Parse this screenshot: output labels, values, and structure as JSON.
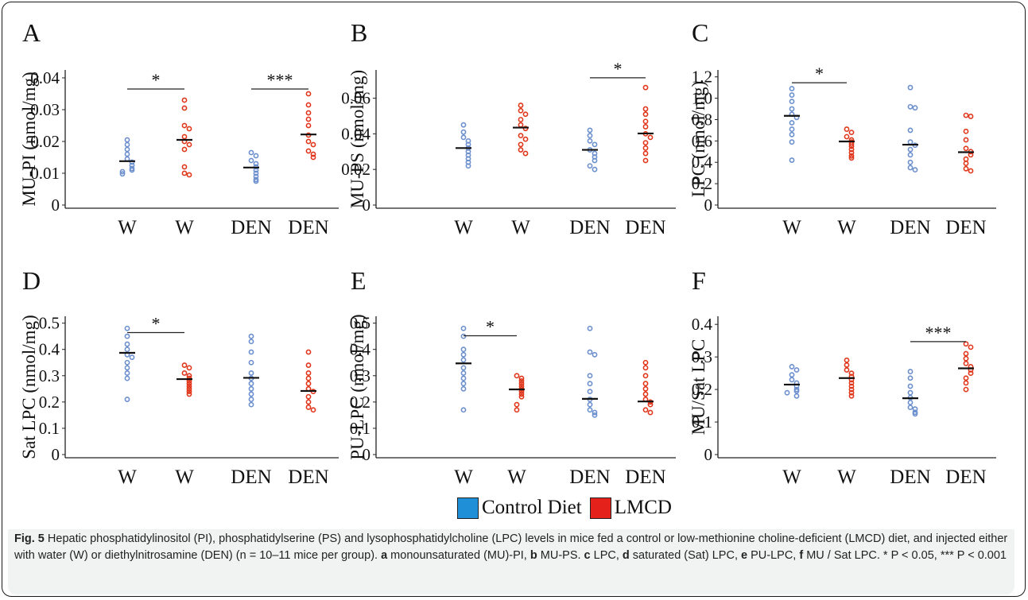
{
  "colors": {
    "control": "#6c8fcd",
    "lmcd": "#e0361b",
    "legend_control": "#1f8fd8",
    "legend_lmcd": "#e4221b"
  },
  "legend": {
    "control_label": "Control Diet",
    "lmcd_label": "LMCD"
  },
  "caption": {
    "fig_label": "Fig. 5",
    "text": " Hepatic phosphatidylinositol (PI), phosphatidylserine (PS) and lysophosphatidylcholine (LPC) levels in mice fed a control or low-methionine choline-deficient (LMCD) diet, and injected either with water (W) or diethylnitrosamine (DEN) (n = 10–11 mice per group). ",
    "parts": [
      {
        "b": "a",
        "t": " monounsaturated (MU)-PI, "
      },
      {
        "b": "b",
        "t": " MU-PS. "
      },
      {
        "b": "c",
        "t": " LPC, "
      },
      {
        "b": "d",
        "t": " saturated (Sat) LPC, "
      },
      {
        "b": "e",
        "t": " PU-LPC, "
      },
      {
        "b": "f",
        "t": " MU / Sat LPC. * "
      }
    ],
    "tail": "P < 0.05, *** P < 0.001"
  },
  "chart_data": [
    {
      "type": "scatter",
      "panel": "A",
      "ylabel": "MU-PI (nmol/mg)",
      "categories": [
        "W",
        "W",
        "DEN",
        "DEN"
      ],
      "diet": [
        "control",
        "lmcd",
        "control",
        "lmcd"
      ],
      "yticks": [
        0,
        0.01,
        0.02,
        0.03,
        0.04
      ],
      "ytick_labels": [
        "0",
        "0.01",
        "0.02",
        "0.03",
        "0.04"
      ],
      "ylim": [
        0,
        0.042
      ],
      "points": [
        [
          0.0205,
          0.019,
          0.0175,
          0.016,
          0.0145,
          0.0135,
          0.0125,
          0.0115,
          0.011,
          0.0105,
          0.0098
        ],
        [
          0.033,
          0.0305,
          0.025,
          0.024,
          0.0215,
          0.02,
          0.019,
          0.0175,
          0.012,
          0.01,
          0.0095
        ],
        [
          0.0165,
          0.0155,
          0.014,
          0.013,
          0.012,
          0.011,
          0.01,
          0.009,
          0.008,
          0.0075
        ],
        [
          0.035,
          0.0315,
          0.029,
          0.027,
          0.025,
          0.022,
          0.02,
          0.019,
          0.017,
          0.016,
          0.015
        ]
      ],
      "medians": [
        0.0138,
        0.0205,
        0.0118,
        0.0222
      ],
      "sig": [
        {
          "from": 0,
          "to": 1,
          "label": "*",
          "y": 0.0365
        },
        {
          "from": 2,
          "to": 3,
          "label": "***",
          "y": 0.0365
        }
      ]
    },
    {
      "type": "scatter",
      "panel": "B",
      "ylabel": "MU-PS (nmol/mg)",
      "categories": [
        "W",
        "W",
        "DEN",
        "DEN"
      ],
      "diet": [
        "control",
        "lmcd",
        "control",
        "lmcd"
      ],
      "yticks": [
        0,
        0.02,
        0.04,
        0.06
      ],
      "ytick_labels": [
        "0",
        "0.02",
        "0.04",
        "0.06"
      ],
      "ylim": [
        0,
        0.075
      ],
      "points": [
        [
          0.045,
          0.041,
          0.038,
          0.036,
          0.034,
          0.032,
          0.03,
          0.028,
          0.026,
          0.024,
          0.022
        ],
        [
          0.056,
          0.053,
          0.051,
          0.048,
          0.045,
          0.043,
          0.039,
          0.037,
          0.034,
          0.031,
          0.029
        ],
        [
          0.042,
          0.039,
          0.036,
          0.034,
          0.031,
          0.029,
          0.027,
          0.025,
          0.022,
          0.02
        ],
        [
          0.066,
          0.054,
          0.051,
          0.047,
          0.044,
          0.04,
          0.038,
          0.035,
          0.032,
          0.029,
          0.025
        ]
      ],
      "medians": [
        0.032,
        0.0435,
        0.031,
        0.0402
      ],
      "sig": [
        {
          "from": 2,
          "to": 3,
          "label": "*",
          "y": 0.0715
        }
      ]
    },
    {
      "type": "scatter",
      "panel": "C",
      "ylabel": "LPC (nmol/mg)",
      "categories": [
        "W",
        "W",
        "DEN",
        "DEN"
      ],
      "diet": [
        "control",
        "lmcd",
        "control",
        "lmcd"
      ],
      "yticks": [
        0,
        0.2,
        0.4,
        0.6,
        0.8,
        1.0,
        1.2
      ],
      "ytick_labels": [
        "0",
        "0.2",
        "0.4",
        "0.6",
        "0.8",
        "1.0",
        "1.2"
      ],
      "ylim": [
        0,
        1.25
      ],
      "points": [
        [
          1.09,
          1.03,
          0.97,
          0.9,
          0.85,
          0.82,
          0.77,
          0.71,
          0.66,
          0.59,
          0.42
        ],
        [
          0.71,
          0.68,
          0.64,
          0.61,
          0.59,
          0.57,
          0.55,
          0.52,
          0.49,
          0.46,
          0.44
        ],
        [
          1.1,
          0.92,
          0.91,
          0.7,
          0.59,
          0.56,
          0.52,
          0.47,
          0.4,
          0.35,
          0.33
        ],
        [
          0.84,
          0.83,
          0.69,
          0.61,
          0.53,
          0.5,
          0.47,
          0.43,
          0.39,
          0.34,
          0.32
        ]
      ],
      "medians": [
        0.835,
        0.595,
        0.565,
        0.495
      ],
      "sig": [
        {
          "from": 0,
          "to": 1,
          "label": "*",
          "y": 1.145
        }
      ]
    },
    {
      "type": "scatter",
      "panel": "D",
      "ylabel": "Sat LPC (nmol/mg)",
      "categories": [
        "W",
        "W",
        "DEN",
        "DEN"
      ],
      "diet": [
        "control",
        "lmcd",
        "control",
        "lmcd"
      ],
      "yticks": [
        0,
        0.1,
        0.2,
        0.3,
        0.4,
        0.5
      ],
      "ytick_labels": [
        "0",
        "0.1",
        "0.2",
        "0.3",
        "0.4",
        "0.5"
      ],
      "ylim": [
        0,
        0.52
      ],
      "points": [
        [
          0.48,
          0.45,
          0.42,
          0.4,
          0.38,
          0.37,
          0.35,
          0.33,
          0.31,
          0.29,
          0.21
        ],
        [
          0.34,
          0.33,
          0.31,
          0.3,
          0.29,
          0.28,
          0.27,
          0.26,
          0.25,
          0.24,
          0.23
        ],
        [
          0.45,
          0.43,
          0.39,
          0.35,
          0.31,
          0.29,
          0.27,
          0.25,
          0.23,
          0.21,
          0.19
        ],
        [
          0.39,
          0.34,
          0.31,
          0.29,
          0.27,
          0.25,
          0.24,
          0.22,
          0.2,
          0.18,
          0.17
        ]
      ],
      "medians": [
        0.387,
        0.287,
        0.292,
        0.242
      ],
      "sig": [
        {
          "from": 0,
          "to": 1,
          "label": "*",
          "y": 0.464
        }
      ]
    },
    {
      "type": "scatter",
      "panel": "E",
      "ylabel": "PU-LPC (nmol/mg)",
      "categories": [
        "W",
        "W",
        "DEN",
        "DEN"
      ],
      "diet": [
        "control",
        "lmcd",
        "control",
        "lmcd"
      ],
      "yticks": [
        0,
        0.1,
        0.2,
        0.3,
        0.4,
        0.5
      ],
      "ytick_labels": [
        "0",
        "0.1",
        "0.2",
        "0.3",
        "0.4",
        "0.5"
      ],
      "ylim": [
        0,
        0.52
      ],
      "points": [
        [
          0.48,
          0.45,
          0.4,
          0.38,
          0.36,
          0.33,
          0.31,
          0.29,
          0.27,
          0.25,
          0.17
        ],
        [
          0.3,
          0.29,
          0.28,
          0.27,
          0.26,
          0.25,
          0.24,
          0.23,
          0.22,
          0.19,
          0.17
        ],
        [
          0.48,
          0.39,
          0.38,
          0.3,
          0.27,
          0.24,
          0.21,
          0.19,
          0.17,
          0.16,
          0.15
        ],
        [
          0.35,
          0.33,
          0.3,
          0.27,
          0.25,
          0.23,
          0.21,
          0.2,
          0.19,
          0.17,
          0.16
        ]
      ],
      "medians": [
        0.347,
        0.248,
        0.212,
        0.202
      ],
      "sig": [
        {
          "from": 0,
          "to": 1,
          "label": "*",
          "y": 0.452
        }
      ]
    },
    {
      "type": "scatter",
      "panel": "F",
      "ylabel": "MU/Sat LPC",
      "categories": [
        "W",
        "W",
        "DEN",
        "DEN"
      ],
      "diet": [
        "control",
        "lmcd",
        "control",
        "lmcd"
      ],
      "yticks": [
        0,
        0.1,
        0.2,
        0.3,
        0.4
      ],
      "ytick_labels": [
        "0",
        "0.1",
        "0.2",
        "0.3",
        "0.4"
      ],
      "ylim": [
        0,
        0.42
      ],
      "points": [
        [
          0.27,
          0.26,
          0.245,
          0.23,
          0.22,
          0.21,
          0.2,
          0.195,
          0.19,
          0.18
        ],
        [
          0.29,
          0.275,
          0.26,
          0.25,
          0.24,
          0.23,
          0.22,
          0.21,
          0.2,
          0.19,
          0.18
        ],
        [
          0.255,
          0.235,
          0.21,
          0.19,
          0.175,
          0.16,
          0.145,
          0.14,
          0.13,
          0.125
        ],
        [
          0.34,
          0.33,
          0.31,
          0.295,
          0.28,
          0.27,
          0.26,
          0.25,
          0.235,
          0.22,
          0.2
        ]
      ],
      "medians": [
        0.215,
        0.235,
        0.173,
        0.265
      ],
      "sig": [
        {
          "from": 2,
          "to": 3,
          "label": "***",
          "y": 0.347
        }
      ]
    }
  ]
}
